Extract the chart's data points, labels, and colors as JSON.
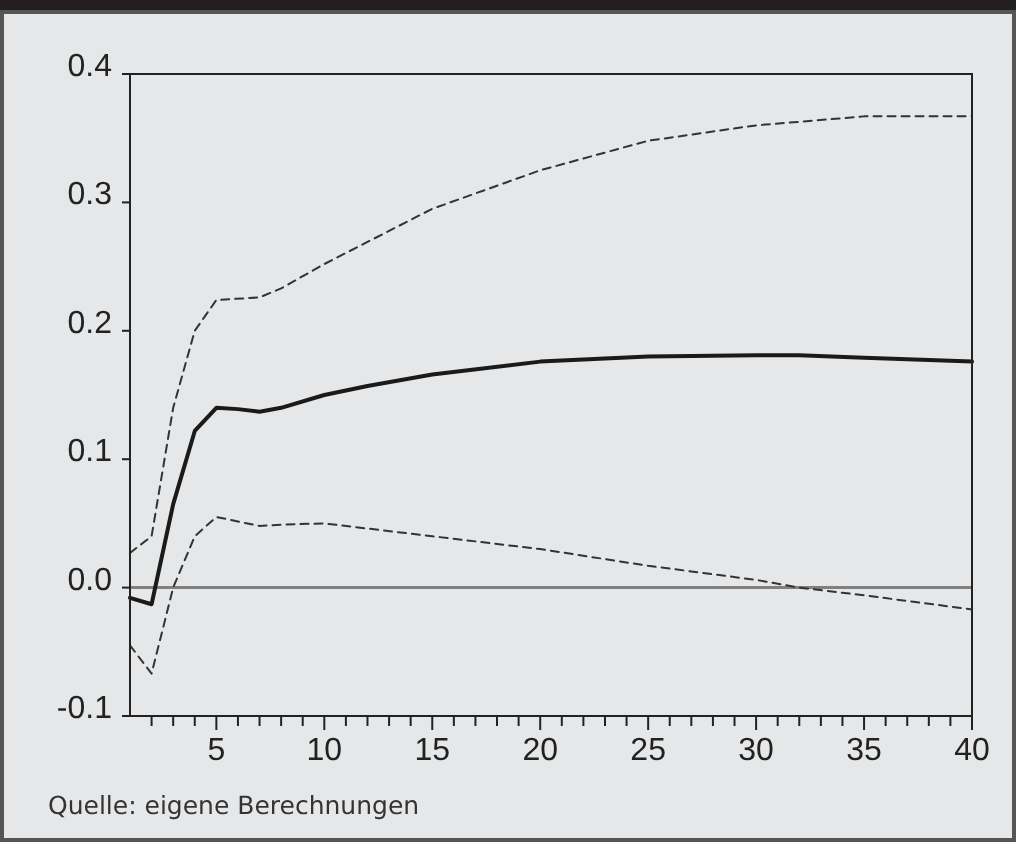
{
  "chart_data": {
    "type": "line",
    "xlim": [
      1,
      40
    ],
    "ylim": [
      -0.1,
      0.4
    ],
    "xticks": [
      {
        "value": 2,
        "label": null
      },
      {
        "value": 3,
        "label": null
      },
      {
        "value": 4,
        "label": null
      },
      5,
      {
        "value": 6,
        "label": null
      },
      {
        "value": 7,
        "label": null
      },
      {
        "value": 8,
        "label": null
      },
      {
        "value": 9,
        "label": null
      },
      10,
      {
        "value": 11,
        "label": null
      },
      {
        "value": 12,
        "label": null
      },
      {
        "value": 13,
        "label": null
      },
      {
        "value": 14,
        "label": null
      },
      15,
      {
        "value": 16,
        "label": null
      },
      {
        "value": 17,
        "label": null
      },
      {
        "value": 18,
        "label": null
      },
      {
        "value": 19,
        "label": null
      },
      20,
      {
        "value": 21,
        "label": null
      },
      {
        "value": 22,
        "label": null
      },
      {
        "value": 23,
        "label": null
      },
      {
        "value": 24,
        "label": null
      },
      25,
      {
        "value": 26,
        "label": null
      },
      {
        "value": 27,
        "label": null
      },
      {
        "value": 28,
        "label": null
      },
      {
        "value": 29,
        "label": null
      },
      30,
      {
        "value": 31,
        "label": null
      },
      {
        "value": 32,
        "label": null
      },
      {
        "value": 33,
        "label": null
      },
      {
        "value": 34,
        "label": null
      },
      35,
      {
        "value": 36,
        "label": null
      },
      {
        "value": 37,
        "label": null
      },
      {
        "value": 38,
        "label": null
      },
      {
        "value": 39,
        "label": null
      },
      40
    ],
    "yticks": [
      {
        "value": -0.1,
        "label": "-0.1"
      },
      {
        "value": 0,
        "label": "0.0"
      },
      {
        "value": 0.1,
        "label": "0.1"
      },
      {
        "value": 0.2,
        "label": "0.2"
      },
      {
        "value": 0.3,
        "label": "0.3"
      },
      {
        "value": 0.4,
        "label": "0.4"
      }
    ],
    "grid": false,
    "ref_lines": [
      {
        "axis": "y",
        "value": 0,
        "color": "#808080"
      }
    ],
    "series": [
      {
        "color": "#1a1a1a",
        "line_style": "solid",
        "x": [
          1,
          2,
          3,
          4,
          5,
          6,
          7,
          8,
          10,
          12,
          15,
          20,
          25,
          30,
          32,
          35,
          40
        ],
        "values": [
          -0.008,
          -0.013,
          0.065,
          0.122,
          0.14,
          0.139,
          0.137,
          0.14,
          0.15,
          0.157,
          0.166,
          0.176,
          0.18,
          0.181,
          0.181,
          0.179,
          0.176
        ]
      },
      {
        "color": "#333333",
        "line_style": "dashed",
        "x": [
          1,
          2,
          3,
          4,
          5,
          7,
          8,
          10,
          15,
          20,
          25,
          30,
          35,
          40
        ],
        "values": [
          0.027,
          0.04,
          0.14,
          0.2,
          0.224,
          0.226,
          0.233,
          0.252,
          0.295,
          0.325,
          0.348,
          0.36,
          0.367,
          0.367
        ]
      },
      {
        "color": "#333333",
        "line_style": "dashed",
        "x": [
          1,
          2,
          3,
          4,
          5,
          7,
          8,
          10,
          15,
          20,
          25,
          30,
          32,
          35,
          40
        ],
        "values": [
          -0.045,
          -0.067,
          0.0,
          0.04,
          0.055,
          0.048,
          0.049,
          0.05,
          0.04,
          0.03,
          0.017,
          0.006,
          0.0,
          -0.006,
          -0.017
        ]
      }
    ],
    "annotations": [
      "Quelle: eigene Berechnungen"
    ]
  }
}
